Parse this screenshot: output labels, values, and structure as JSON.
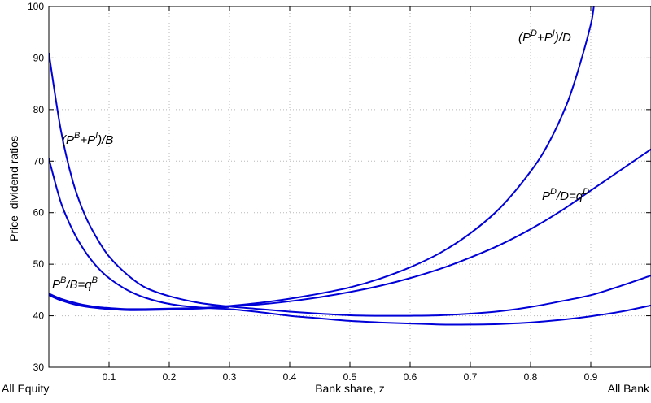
{
  "chart_data": {
    "type": "line",
    "xlabel": "Bank share, z",
    "ylabel": "Price–dividend ratios",
    "xlim": [
      0,
      1
    ],
    "ylim": [
      30,
      100
    ],
    "x_ticks": [
      0.1,
      0.2,
      0.3,
      0.4,
      0.5,
      0.6,
      0.7,
      0.8,
      0.9
    ],
    "y_ticks": [
      30,
      40,
      50,
      60,
      70,
      80,
      90,
      100
    ],
    "x_end_labels": {
      "left": "All Equity",
      "right": "All Bank"
    },
    "grid": true,
    "series": [
      {
        "name": "(P^B+P^I)/B",
        "x": [
          0.0,
          0.02,
          0.04,
          0.06,
          0.08,
          0.1,
          0.13,
          0.16,
          0.2,
          0.25,
          0.3,
          0.35,
          0.4,
          0.45,
          0.5,
          0.55,
          0.6,
          0.65,
          0.7,
          0.75,
          0.8,
          0.85,
          0.9,
          0.95,
          1.0
        ],
        "values": [
          91.0,
          76.0,
          66.0,
          59.5,
          55.0,
          51.5,
          48.0,
          45.5,
          43.8,
          42.5,
          41.8,
          41.3,
          40.8,
          40.4,
          40.1,
          40.0,
          40.0,
          40.1,
          40.4,
          40.9,
          41.7,
          42.8,
          44.0,
          45.8,
          47.8
        ]
      },
      {
        "name": "",
        "x": [
          0.0,
          0.02,
          0.04,
          0.06,
          0.08,
          0.1,
          0.13,
          0.16,
          0.2,
          0.25,
          0.3,
          0.35,
          0.4,
          0.45,
          0.5,
          0.55,
          0.6,
          0.65,
          0.7,
          0.75,
          0.8,
          0.85,
          0.9,
          0.95,
          1.0
        ],
        "values": [
          70.5,
          62.0,
          56.5,
          52.5,
          49.5,
          47.3,
          45.0,
          43.5,
          42.3,
          41.6,
          41.3,
          40.7,
          40.0,
          39.5,
          39.0,
          38.7,
          38.5,
          38.3,
          38.3,
          38.4,
          38.7,
          39.2,
          39.9,
          40.8,
          42.0
        ]
      },
      {
        "name": "P^B/B=q^B",
        "x": [
          0.0,
          0.02,
          0.05,
          0.08,
          0.1,
          0.13,
          0.16,
          0.2,
          0.25,
          0.3
        ],
        "values": [
          44.3,
          43.3,
          42.3,
          41.7,
          41.5,
          41.3,
          41.3,
          41.4,
          41.5,
          41.8
        ]
      },
      {
        "name": "",
        "x": [
          0.0,
          0.02,
          0.05,
          0.08,
          0.1,
          0.13,
          0.16,
          0.2,
          0.25,
          0.3
        ],
        "values": [
          44.0,
          43.0,
          42.0,
          41.5,
          41.3,
          41.1,
          41.1,
          41.2,
          41.4,
          41.7
        ]
      },
      {
        "name": "(P^D+P^I)/D",
        "x": [
          0.29,
          0.35,
          0.4,
          0.45,
          0.5,
          0.55,
          0.6,
          0.65,
          0.7,
          0.75,
          0.8,
          0.83,
          0.86,
          0.88,
          0.9,
          0.905
        ],
        "values": [
          41.8,
          42.5,
          43.3,
          44.3,
          45.5,
          47.2,
          49.4,
          52.2,
          56.0,
          61.0,
          68.0,
          73.5,
          81.0,
          88.0,
          96.5,
          100.0
        ]
      },
      {
        "name": "P^D/D=q^D",
        "x": [
          0.29,
          0.35,
          0.4,
          0.45,
          0.5,
          0.55,
          0.6,
          0.65,
          0.7,
          0.75,
          0.8,
          0.85,
          0.9,
          0.95,
          1.0
        ],
        "values": [
          41.8,
          42.2,
          42.8,
          43.6,
          44.6,
          45.8,
          47.3,
          49.1,
          51.3,
          53.8,
          56.8,
          60.3,
          64.3,
          68.3,
          72.3
        ]
      }
    ],
    "annotations": [
      {
        "id": "ann1",
        "base": "(P",
        "sup1": "B",
        "mid": "+P",
        "sup2": "I",
        "end": ")/B"
      },
      {
        "id": "ann2",
        "base": "(P",
        "sup1": "D",
        "mid": "+P",
        "sup2": "I",
        "end": ")/D"
      },
      {
        "id": "ann3",
        "base": "P",
        "sup1": "D",
        "mid": "/D=q",
        "sup2": "D",
        "end": ""
      },
      {
        "id": "ann4",
        "base": "P",
        "sup1": "B",
        "mid": "/B=q",
        "sup2": "B",
        "end": ""
      }
    ]
  }
}
